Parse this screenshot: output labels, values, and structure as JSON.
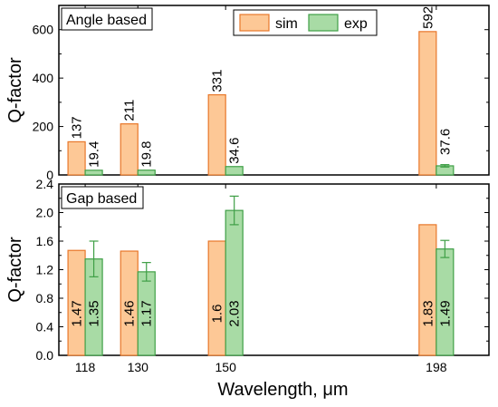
{
  "chart_data": [
    {
      "type": "bar",
      "title": "Angle based",
      "xlabel": "",
      "ylabel": "Q-factor",
      "categories": [
        "118",
        "130",
        "150",
        "198"
      ],
      "x": [
        118,
        130,
        150,
        198
      ],
      "xlim": [
        112,
        210
      ],
      "ylim": [
        0,
        700
      ],
      "yticks": [
        0,
        200,
        400,
        600
      ],
      "legend": {
        "position": "top-center"
      },
      "series": [
        {
          "name": "sim",
          "values": [
            137,
            211,
            331,
            592
          ],
          "labels": [
            "137",
            "211",
            "331",
            "592"
          ],
          "errors": [
            0,
            0,
            0,
            0
          ],
          "color": "#FDC896",
          "edge": "#E8772A"
        },
        {
          "name": "exp",
          "values": [
            19.4,
            19.8,
            34.6,
            37.6
          ],
          "labels": [
            "19.4",
            "19.8",
            "34.6",
            "37.6"
          ],
          "errors": [
            0,
            0,
            0,
            5
          ],
          "color": "#A8DBA5",
          "edge": "#3F9F46"
        }
      ]
    },
    {
      "type": "bar",
      "title": "Gap based",
      "xlabel": "Wavelength, μm",
      "ylabel": "Q-factor",
      "categories": [
        "118",
        "130",
        "150",
        "198"
      ],
      "x": [
        118,
        130,
        150,
        198
      ],
      "xlim": [
        112,
        210
      ],
      "ylim": [
        0,
        2.4
      ],
      "yticks": [
        "0.0",
        "0.4",
        "0.8",
        "1.2",
        "1.6",
        "2.0",
        "2.4"
      ],
      "series": [
        {
          "name": "sim",
          "values": [
            1.47,
            1.46,
            1.6,
            1.83
          ],
          "labels": [
            "1.47",
            "1.46",
            "1.6",
            "1.83"
          ],
          "errors": [
            0,
            0,
            0,
            0
          ],
          "color": "#FDC896",
          "edge": "#E8772A"
        },
        {
          "name": "exp",
          "values": [
            1.35,
            1.17,
            2.03,
            1.49
          ],
          "labels": [
            "1.35",
            "1.17",
            "2.03",
            "1.49"
          ],
          "errors": [
            0.25,
            0.13,
            0.2,
            0.12
          ],
          "color": "#A8DBA5",
          "edge": "#3F9F46"
        }
      ]
    }
  ]
}
